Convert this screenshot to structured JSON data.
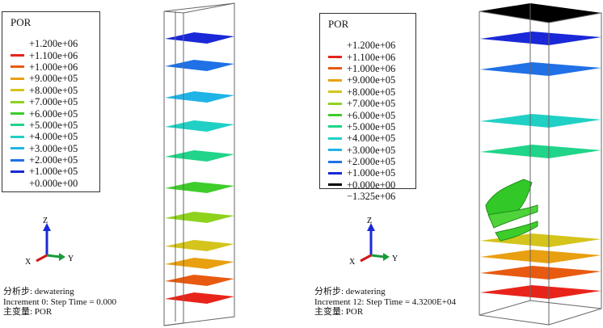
{
  "left": {
    "legend": {
      "title": "POR",
      "entries": [
        {
          "label": "+1.200e+06",
          "color": ""
        },
        {
          "label": "+1.100e+06",
          "color": "#e8241a"
        },
        {
          "label": "+1.000e+06",
          "color": "#e85a10"
        },
        {
          "label": "+9.000e+05",
          "color": "#e8a010"
        },
        {
          "label": "+8.000e+05",
          "color": "#d4c41c"
        },
        {
          "label": "+7.000e+05",
          "color": "#8ed21e"
        },
        {
          "label": "+6.000e+05",
          "color": "#3ecc2a"
        },
        {
          "label": "+5.000e+05",
          "color": "#20d48a"
        },
        {
          "label": "+4.000e+05",
          "color": "#20d0c4"
        },
        {
          "label": "+3.000e+05",
          "color": "#20b4e6"
        },
        {
          "label": "+2.000e+05",
          "color": "#2070e6"
        },
        {
          "label": "+1.000e+05",
          "color": "#1a28d8"
        },
        {
          "label": "+0.000e+00",
          "color": ""
        }
      ]
    },
    "triad": {
      "z": "Z",
      "x": "X",
      "y": "Y"
    },
    "caption": {
      "step": "分析步: dewatering",
      "increment": "Increment 0: Step Time = 0.000",
      "variable": "主变量: POR"
    }
  },
  "right": {
    "legend": {
      "title": "POR",
      "entries": [
        {
          "label": "+1.200e+06",
          "color": ""
        },
        {
          "label": "+1.100e+06",
          "color": "#e8241a"
        },
        {
          "label": "+1.000e+06",
          "color": "#e85a10"
        },
        {
          "label": "+9.000e+05",
          "color": "#e8a010"
        },
        {
          "label": "+8.000e+05",
          "color": "#d4c41c"
        },
        {
          "label": "+7.000e+05",
          "color": "#8ed21e"
        },
        {
          "label": "+6.000e+05",
          "color": "#3ecc2a"
        },
        {
          "label": "+5.000e+05",
          "color": "#20d48a"
        },
        {
          "label": "+4.000e+05",
          "color": "#20d0c4"
        },
        {
          "label": "+3.000e+05",
          "color": "#20b4e6"
        },
        {
          "label": "+2.000e+05",
          "color": "#2070e6"
        },
        {
          "label": "+1.000e+05",
          "color": "#1a28d8"
        },
        {
          "label": "+0.000e+00",
          "color": "#000000"
        },
        {
          "label": "−1.325e+06",
          "color": ""
        }
      ]
    },
    "triad": {
      "z": "Z",
      "x": "X",
      "y": "Y"
    },
    "caption": {
      "step": "分析步: dewatering",
      "increment": "Increment 12: Step Time = 4.3200E+04",
      "variable": "主变量: POR"
    }
  },
  "colors": {
    "axis_x": "#d01818",
    "axis_y": "#1a9a3a",
    "axis_z": "#1a2ad8",
    "box_line": "#666666"
  }
}
